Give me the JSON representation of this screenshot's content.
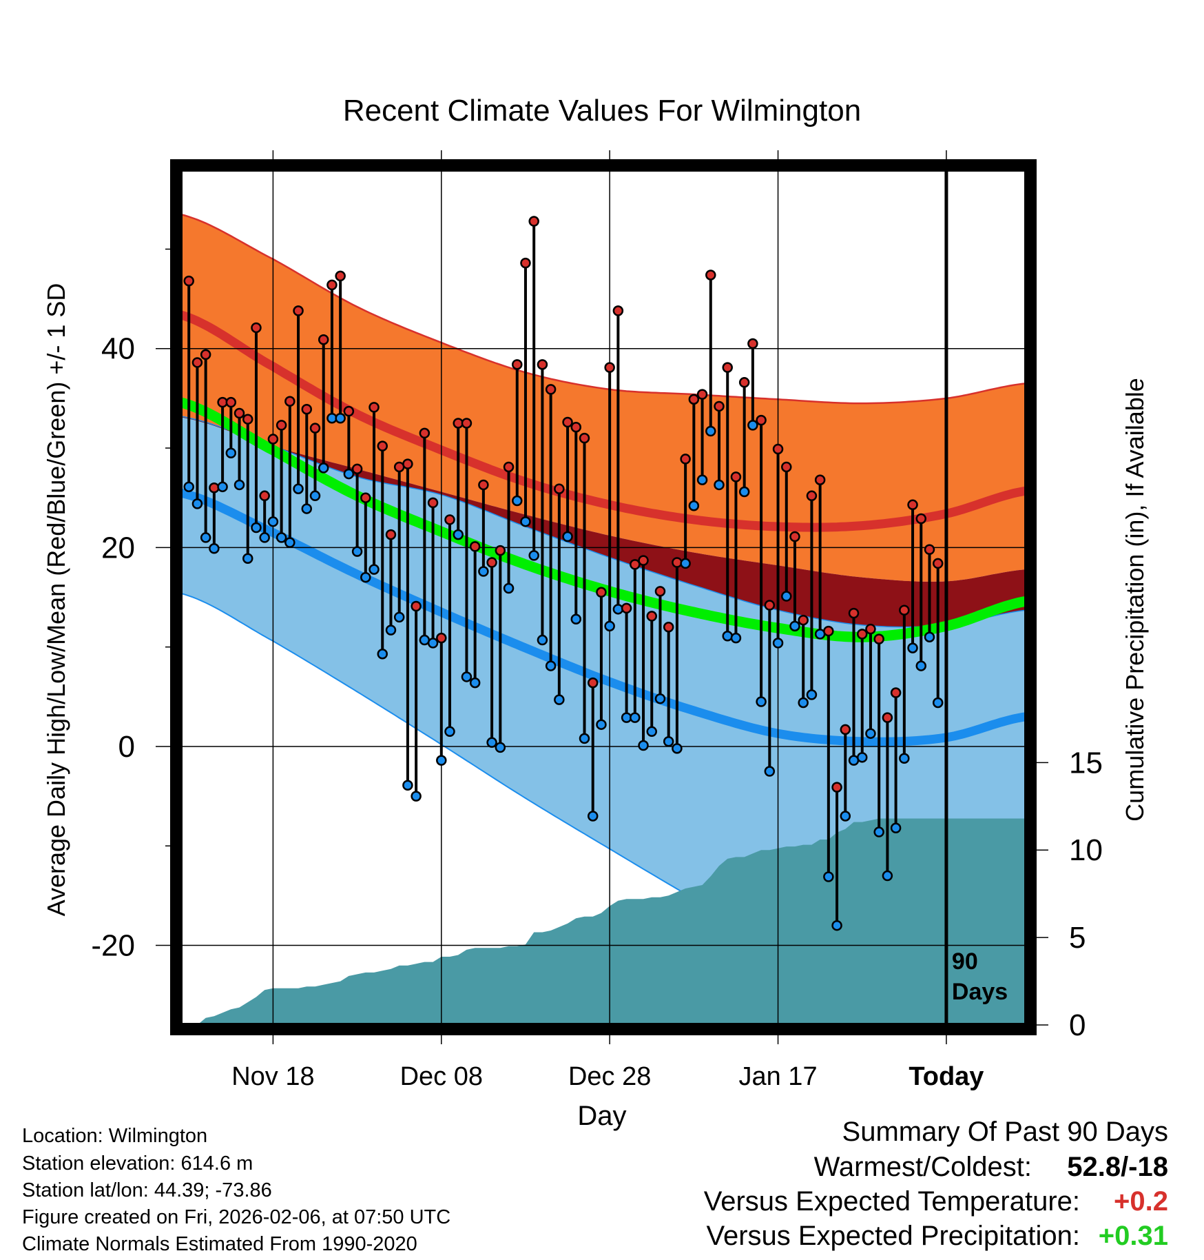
{
  "chart_data": {
    "type": "line",
    "title": "Recent Climate Values For Wilmington",
    "xlabel": "Day",
    "ylabel": "Average Daily High/Low/Mean (Red/Blue/Green) +/- 1 SD",
    "y2label": "Cumulative Precipitation (in), If Available",
    "ylim": [
      -28,
      58
    ],
    "y2lim": [
      0,
      48.9
    ],
    "xlim": [
      -1,
      99.5
    ],
    "x_ticks": [
      {
        "day": 10,
        "label": "Nov 18"
      },
      {
        "day": 30,
        "label": "Dec 08"
      },
      {
        "day": 50,
        "label": "Dec 28"
      },
      {
        "day": 70,
        "label": "Jan 17"
      },
      {
        "day": 90,
        "label": "Today"
      }
    ],
    "y_ticks": [
      40,
      20,
      0,
      -20
    ],
    "y_minor_ticks": [
      50,
      30,
      10,
      -10
    ],
    "y2_ticks": [
      15,
      10,
      5,
      0
    ],
    "today_day": 90,
    "today_label": "90 Days",
    "grid": true,
    "normals": {
      "x": [
        -1,
        10,
        20,
        30,
        40,
        50,
        60,
        70,
        80,
        90,
        99.5
      ],
      "high_mean": [
        43.4,
        38.2,
        33.4,
        29.8,
        26.6,
        24.3,
        22.8,
        22.1,
        22.2,
        23.4,
        25.7
      ],
      "high_upper": [
        53.5,
        49.0,
        44.2,
        40.6,
        37.6,
        35.9,
        35.4,
        34.9,
        34.5,
        35.0,
        36.5
      ],
      "high_lower": [
        33.1,
        30.2,
        27.9,
        25.6,
        23.3,
        21.2,
        19.5,
        18.2,
        17.0,
        16.6,
        17.8
      ],
      "mean": [
        34.6,
        29.8,
        25.2,
        21.6,
        18.3,
        15.6,
        13.5,
        11.9,
        11.0,
        12.1,
        14.6
      ],
      "low_mean": [
        25.5,
        21.5,
        17.3,
        13.5,
        9.9,
        6.5,
        3.6,
        1.3,
        0.5,
        0.9,
        3.0
      ],
      "low_upper": [
        33.2,
        30.2,
        27.1,
        25.3,
        22.1,
        19.0,
        16.2,
        13.7,
        12.2,
        12.2,
        13.7
      ],
      "low_lower": [
        15.4,
        10.6,
        5.5,
        0.2,
        -5.2,
        -10.3,
        -15.3,
        -20.0,
        -24.0,
        -26.0,
        -26.0
      ]
    },
    "series": [
      {
        "name": "High",
        "color": "#d7312c",
        "values": [
          46.8,
          38.6,
          39.4,
          26.0,
          34.6,
          34.6,
          33.5,
          32.9,
          42.1,
          25.2,
          30.9,
          32.3,
          34.7,
          43.8,
          33.9,
          32.0,
          40.9,
          46.4,
          47.3,
          33.7,
          27.9,
          25.0,
          34.1,
          30.2,
          21.3,
          28.1,
          28.4,
          14.1,
          31.5,
          24.5,
          10.9,
          22.8,
          32.5,
          32.5,
          20.1,
          26.3,
          18.5,
          19.7,
          28.1,
          38.4,
          48.6,
          52.8,
          38.4,
          35.9,
          25.9,
          32.6,
          32.1,
          31.0,
          6.4,
          15.5,
          38.1,
          43.8,
          13.9,
          18.3,
          18.7,
          13.1,
          15.6,
          12.0,
          18.5,
          28.9,
          34.9,
          35.4,
          47.4,
          34.2,
          38.1,
          27.1,
          36.6,
          40.5,
          32.8,
          14.2,
          29.9,
          28.1,
          21.1,
          12.7,
          25.2,
          26.8,
          11.6,
          -4.1,
          1.7,
          13.4,
          11.3,
          11.8,
          10.8,
          2.9,
          5.4,
          13.7,
          24.3,
          22.9,
          19.8,
          18.4
        ]
      },
      {
        "name": "Low",
        "color": "#1b8ded",
        "values": [
          26.1,
          24.4,
          21.0,
          19.9,
          26.1,
          29.5,
          26.3,
          18.9,
          22.0,
          21.0,
          22.6,
          21.0,
          20.5,
          25.9,
          23.9,
          25.2,
          28.0,
          33.0,
          33.0,
          27.4,
          19.6,
          17.0,
          17.8,
          9.3,
          11.7,
          13.0,
          -3.9,
          -5.0,
          10.7,
          10.4,
          -1.4,
          1.5,
          21.3,
          7.0,
          6.4,
          17.6,
          0.4,
          -0.1,
          15.9,
          24.7,
          22.6,
          19.2,
          10.7,
          8.1,
          4.7,
          21.1,
          12.8,
          0.8,
          -7.0,
          2.2,
          12.1,
          13.8,
          2.9,
          2.9,
          0.1,
          1.5,
          4.8,
          0.5,
          -0.2,
          18.4,
          24.2,
          26.8,
          31.7,
          26.3,
          11.1,
          10.9,
          25.6,
          32.3,
          4.5,
          -2.5,
          10.4,
          15.1,
          12.1,
          4.4,
          5.2,
          11.3,
          -13.1,
          -18.0,
          -7.0,
          -1.4,
          -1.1,
          1.3,
          -8.6,
          -13.0,
          -8.2,
          -1.2,
          9.9,
          8.1,
          11.0,
          4.4
        ]
      }
    ],
    "precip": {
      "name": "Cumulative Precipitation",
      "color": "#4a9aa5",
      "x": [
        0,
        1,
        2,
        3,
        4,
        5,
        6,
        7,
        8,
        9,
        10,
        11,
        12,
        13,
        14,
        15,
        16,
        17,
        18,
        19,
        20,
        21,
        22,
        23,
        24,
        25,
        26,
        27,
        28,
        29,
        30,
        31,
        32,
        33,
        34,
        35,
        36,
        37,
        38,
        39,
        40,
        41,
        42,
        43,
        44,
        45,
        46,
        47,
        48,
        49,
        50,
        51,
        52,
        53,
        54,
        55,
        56,
        57,
        58,
        59,
        60,
        61,
        62,
        63,
        64,
        65,
        66,
        67,
        68,
        69,
        70,
        71,
        72,
        73,
        74,
        75,
        76,
        77,
        78,
        79,
        80,
        81,
        82,
        83,
        84,
        85,
        86,
        87,
        88,
        89,
        90,
        99.5
      ],
      "values": [
        0.0,
        0.0,
        0.4,
        0.5,
        0.7,
        0.9,
        1.0,
        1.3,
        1.6,
        2.0,
        2.1,
        2.1,
        2.1,
        2.1,
        2.2,
        2.2,
        2.3,
        2.4,
        2.5,
        2.8,
        2.9,
        3.0,
        3.0,
        3.1,
        3.2,
        3.4,
        3.4,
        3.5,
        3.6,
        3.6,
        3.9,
        3.9,
        4.0,
        4.3,
        4.4,
        4.4,
        4.4,
        4.4,
        4.5,
        4.5,
        4.6,
        5.3,
        5.3,
        5.4,
        5.6,
        5.8,
        6.1,
        6.2,
        6.2,
        6.4,
        6.8,
        7.1,
        7.2,
        7.2,
        7.2,
        7.3,
        7.3,
        7.4,
        7.6,
        7.8,
        7.9,
        8.0,
        8.5,
        9.1,
        9.5,
        9.6,
        9.6,
        9.8,
        10.0,
        10.0,
        10.1,
        10.2,
        10.2,
        10.3,
        10.3,
        10.6,
        10.6,
        11.0,
        11.2,
        11.6,
        11.6,
        11.7,
        11.8,
        11.8,
        11.8,
        11.8,
        11.8,
        11.8,
        11.8,
        11.8,
        11.8,
        11.8
      ]
    }
  },
  "info": {
    "location": "Location: Wilmington",
    "elevation": "Station elevation: 614.6 m",
    "latlon": "Station lat/lon: 44.39; -73.86",
    "created": "Figure created on Fri, 2026-02-06, at 07:50 UTC",
    "normals": "Climate Normals Estimated From 1990-2020"
  },
  "summary": {
    "title": "Summary Of Past 90 Days",
    "warmest_label": "Warmest/Coldest:",
    "warmest_value": "52.8/-18",
    "temp_label": "Versus Expected Temperature:",
    "temp_value": "+0.2",
    "temp_color": "#d7312c",
    "precip_label": "Versus Expected Precipitation:",
    "precip_value": "+0.31",
    "precip_color": "#22cc22"
  },
  "colors": {
    "high_band": "#f5782d",
    "high_line": "#d7312c",
    "overlap_band": "#8e1117",
    "low_band": "#84c1e7",
    "low_line": "#1b8ded",
    "mean_line": "#00ee00",
    "precip": "#4a9aa5"
  }
}
